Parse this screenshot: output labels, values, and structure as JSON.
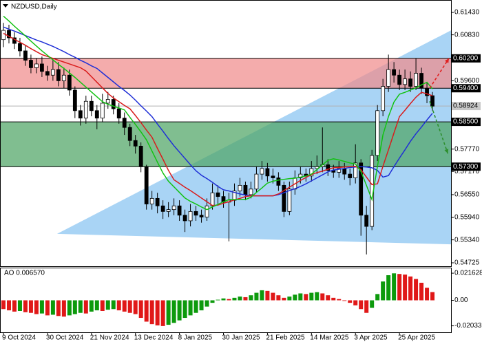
{
  "chart_data": [
    {
      "type": "candlestick",
      "title": "NZDUSD,Daily",
      "xlim": [
        -0.5,
        81.375
      ],
      "ylim": [
        0.54633,
        0.61744
      ],
      "color": "#000000",
      "open": [
        0.607,
        0.6095,
        0.6075,
        0.606,
        0.604,
        0.6015,
        0.5995,
        0.6005,
        0.5985,
        0.5975,
        0.599,
        0.596,
        0.5975,
        0.5935,
        0.588,
        0.586,
        0.5905,
        0.588,
        0.586,
        0.59,
        0.591,
        0.5885,
        0.586,
        0.5835,
        0.58,
        0.5785,
        0.573,
        0.563,
        0.5645,
        0.5625,
        0.561,
        0.5615,
        0.5625,
        0.56,
        0.5585,
        0.561,
        0.56,
        0.5595,
        0.5625,
        0.566,
        0.565,
        0.5635,
        0.564,
        0.5665,
        0.568,
        0.5655,
        0.567,
        0.571,
        0.5725,
        0.5705,
        0.57,
        0.568,
        0.561,
        0.567,
        0.57,
        0.571,
        0.5705,
        0.5725,
        0.573,
        0.5735,
        0.572,
        0.5715,
        0.5725,
        0.571,
        0.57,
        0.574,
        0.56,
        0.557,
        0.576,
        0.588,
        0.5945,
        0.599,
        0.5975,
        0.595,
        0.5965,
        0.5945,
        0.598,
        0.594,
        0.592
      ],
      "high": [
        0.6115,
        0.611,
        0.609,
        0.6075,
        0.6055,
        0.603,
        0.602,
        0.6025,
        0.6,
        0.602,
        0.601,
        0.5995,
        0.599,
        0.5945,
        0.5895,
        0.592,
        0.592,
        0.5895,
        0.5925,
        0.593,
        0.592,
        0.59,
        0.5875,
        0.5845,
        0.5815,
        0.5795,
        0.5735,
        0.5665,
        0.566,
        0.564,
        0.5635,
        0.5645,
        0.564,
        0.5615,
        0.563,
        0.5625,
        0.5615,
        0.5645,
        0.5685,
        0.568,
        0.5665,
        0.566,
        0.5685,
        0.57,
        0.569,
        0.569,
        0.573,
        0.5745,
        0.574,
        0.5725,
        0.5715,
        0.569,
        0.569,
        0.572,
        0.573,
        0.5725,
        0.5745,
        0.576,
        0.5835,
        0.575,
        0.5735,
        0.5745,
        0.574,
        0.5725,
        0.579,
        0.575,
        0.5625,
        0.5775,
        0.5895,
        0.5965,
        0.603,
        0.601,
        0.599,
        0.599,
        0.5985,
        0.602,
        0.5995,
        0.5955,
        0.593
      ],
      "low": [
        0.605,
        0.606,
        0.6045,
        0.6025,
        0.6,
        0.598,
        0.598,
        0.597,
        0.596,
        0.596,
        0.5945,
        0.594,
        0.592,
        0.586,
        0.584,
        0.5845,
        0.5865,
        0.583,
        0.585,
        0.5885,
        0.587,
        0.5845,
        0.5815,
        0.5785,
        0.5765,
        0.5715,
        0.5615,
        0.5615,
        0.5605,
        0.559,
        0.5595,
        0.56,
        0.5585,
        0.5555,
        0.557,
        0.5585,
        0.558,
        0.5585,
        0.5615,
        0.563,
        0.562,
        0.553,
        0.5625,
        0.565,
        0.564,
        0.5645,
        0.566,
        0.5695,
        0.569,
        0.5685,
        0.5665,
        0.5595,
        0.56,
        0.5655,
        0.5685,
        0.569,
        0.569,
        0.571,
        0.5715,
        0.5705,
        0.57,
        0.57,
        0.5695,
        0.568,
        0.5685,
        0.5545,
        0.5495,
        0.556,
        0.5745,
        0.5865,
        0.593,
        0.5955,
        0.5935,
        0.5935,
        0.593,
        0.5935,
        0.5925,
        0.59,
        0.588
      ],
      "close": [
        0.6095,
        0.6075,
        0.606,
        0.604,
        0.6015,
        0.5995,
        0.6005,
        0.5985,
        0.5975,
        0.599,
        0.596,
        0.5975,
        0.5935,
        0.588,
        0.586,
        0.5905,
        0.588,
        0.586,
        0.59,
        0.591,
        0.5885,
        0.586,
        0.5835,
        0.58,
        0.5785,
        0.573,
        0.563,
        0.5645,
        0.5625,
        0.561,
        0.5615,
        0.5625,
        0.56,
        0.5585,
        0.561,
        0.56,
        0.5595,
        0.5625,
        0.566,
        0.565,
        0.5635,
        0.564,
        0.5665,
        0.568,
        0.5655,
        0.567,
        0.571,
        0.5725,
        0.5705,
        0.57,
        0.568,
        0.561,
        0.567,
        0.57,
        0.571,
        0.5705,
        0.5725,
        0.573,
        0.5735,
        0.572,
        0.5715,
        0.5725,
        0.571,
        0.57,
        0.574,
        0.56,
        0.557,
        0.576,
        0.588,
        0.5945,
        0.599,
        0.5975,
        0.595,
        0.5965,
        0.5945,
        0.598,
        0.594,
        0.592,
        0.5892
      ],
      "lines": [
        {
          "color": "#1f2fd6",
          "values": [
            0.6104,
            0.6098,
            0.6093,
            0.6087,
            0.6081,
            0.6075,
            0.6069,
            0.6064,
            0.6058,
            0.6052,
            0.6045,
            0.6038,
            0.603,
            0.6023,
            0.6015,
            0.6008,
            0.6,
            0.5993,
            0.5981,
            0.5969,
            0.5957,
            0.5945,
            0.5934,
            0.5922,
            0.5908,
            0.5893,
            0.5879,
            0.5864,
            0.5844,
            0.5825,
            0.5805,
            0.5786,
            0.5769,
            0.5752,
            0.5735,
            0.5719,
            0.5707,
            0.5698,
            0.5688,
            0.5677,
            0.5668,
            0.5665,
            0.5661,
            0.5657,
            0.5654,
            0.5652,
            0.5652,
            0.5652,
            0.5652,
            0.5652,
            0.5655,
            0.566,
            0.5666,
            0.5671,
            0.5677,
            0.5684,
            0.5692,
            0.57,
            0.5708,
            0.5716,
            0.5721,
            0.5723,
            0.5725,
            0.5728,
            0.5729,
            0.573,
            0.5729,
            0.5727,
            0.572,
            0.5702,
            0.5706,
            0.573,
            0.5753,
            0.5775,
            0.5798,
            0.5818,
            0.5836,
            0.5855,
            0.5873
          ]
        },
        {
          "color": "#d91c1c",
          "values": [
            0.6087,
            0.6079,
            0.6071,
            0.6063,
            0.6055,
            0.6046,
            0.6038,
            0.603,
            0.6025,
            0.602,
            0.6015,
            0.601,
            0.6005,
            0.6,
            0.5995,
            0.5986,
            0.5971,
            0.5956,
            0.5941,
            0.5926,
            0.5914,
            0.5904,
            0.5894,
            0.5885,
            0.5867,
            0.5848,
            0.5828,
            0.5809,
            0.5779,
            0.575,
            0.572,
            0.5695,
            0.5685,
            0.5675,
            0.5666,
            0.5656,
            0.5646,
            0.5636,
            0.5626,
            0.5627,
            0.5632,
            0.5636,
            0.5641,
            0.5645,
            0.565,
            0.5652,
            0.5652,
            0.5652,
            0.5652,
            0.5652,
            0.5657,
            0.5666,
            0.5675,
            0.5684,
            0.5693,
            0.5701,
            0.5709,
            0.5714,
            0.5718,
            0.5723,
            0.5727,
            0.5728,
            0.5729,
            0.573,
            0.5731,
            0.5722,
            0.5702,
            0.5682,
            0.5684,
            0.5731,
            0.5775,
            0.582,
            0.5864,
            0.5881,
            0.5899,
            0.5916,
            0.5929,
            0.5925,
            0.592
          ]
        },
        {
          "color": "#12c212",
          "values": [
            0.6133,
            0.612,
            0.6106,
            0.6093,
            0.608,
            0.6066,
            0.6053,
            0.604,
            0.6028,
            0.6016,
            0.6004,
            0.5993,
            0.5981,
            0.5969,
            0.5956,
            0.5943,
            0.593,
            0.5917,
            0.5904,
            0.5897,
            0.5892,
            0.5887,
            0.5882,
            0.5862,
            0.5843,
            0.5823,
            0.5802,
            0.5772,
            0.5742,
            0.5713,
            0.5691,
            0.5676,
            0.5661,
            0.5646,
            0.5637,
            0.563,
            0.5622,
            0.5615,
            0.5622,
            0.5629,
            0.5636,
            0.5642,
            0.5642,
            0.5642,
            0.5642,
            0.5648,
            0.5661,
            0.5673,
            0.5686,
            0.5691,
            0.5694,
            0.5696,
            0.5698,
            0.5699,
            0.5702,
            0.5705,
            0.571,
            0.5722,
            0.5735,
            0.5747,
            0.5751,
            0.5748,
            0.5744,
            0.574,
            0.5737,
            0.5717,
            0.568,
            0.5642,
            0.5731,
            0.5815,
            0.5864,
            0.5903,
            0.5924,
            0.5929,
            0.5935,
            0.5941,
            0.5949,
            0.5956,
            0.5938
          ]
        }
      ],
      "zones": [
        {
          "from": 0.602,
          "to": 0.594,
          "color": "#f08c8c"
        },
        {
          "from": 0.585,
          "to": 0.573,
          "color": "#4fa565"
        }
      ],
      "triangle": {
        "color": "#a9d4f5",
        "points": [
          [
            9.75,
            0.555
          ],
          [
            81.375,
            0.6095
          ],
          [
            81.375,
            0.5522
          ]
        ]
      },
      "arrows": [
        {
          "color": "#e02020",
          "from": [
            77.5,
            0.594
          ],
          "to": [
            81,
            0.602
          ]
        },
        {
          "color": "#2e8f2e",
          "from": [
            77.5,
            0.5905
          ],
          "to": [
            80.8,
            0.5765
          ]
        }
      ],
      "levels": [
        {
          "value": 0.602,
          "label": "0.60200"
        },
        {
          "value": 0.594,
          "label": "0.59400"
        },
        {
          "value": 0.585,
          "label": "0.58500"
        },
        {
          "value": 0.573,
          "label": "0.57300"
        }
      ],
      "current": {
        "value": 0.58924,
        "label": "0.58924"
      },
      "yticks": [
        {
          "value": 0.6143,
          "label": "0.61430"
        },
        {
          "value": 0.6083,
          "label": "0.60830"
        },
        {
          "value": 0.596,
          "label": "0.59600"
        },
        {
          "value": 0.5777,
          "label": "0.57770"
        },
        {
          "value": 0.5717,
          "label": "0.57170"
        },
        {
          "value": 0.5655,
          "label": "0.56550"
        },
        {
          "value": 0.5594,
          "label": "0.55940"
        },
        {
          "value": 0.5534,
          "label": "0.55340"
        },
        {
          "value": 0.54725,
          "label": "0.54725"
        }
      ]
    },
    {
      "type": "oscillator",
      "label": "AO 0.006570",
      "up_color": "#0c9a0c",
      "down_color": "#e01818",
      "xlim": [
        -0.5,
        81.375
      ],
      "ylim": [
        -0.0255,
        0.0255
      ],
      "values": [
        -0.007,
        -0.008,
        -0.009,
        -0.0085,
        -0.0095,
        -0.01,
        -0.011,
        -0.0105,
        -0.012,
        -0.0115,
        -0.0125,
        -0.013,
        -0.012,
        -0.011,
        -0.01,
        -0.0105,
        -0.009,
        -0.008,
        -0.0085,
        -0.0075,
        -0.007,
        -0.008,
        -0.009,
        -0.01,
        -0.011,
        -0.014,
        -0.017,
        -0.019,
        -0.02,
        -0.0205,
        -0.0195,
        -0.018,
        -0.016,
        -0.014,
        -0.012,
        -0.01,
        -0.008,
        -0.005,
        -0.002,
        0.0005,
        0.0015,
        0.001,
        0.002,
        0.003,
        0.0025,
        0.004,
        0.006,
        0.008,
        0.0075,
        0.006,
        0.004,
        0.002,
        0.003,
        0.0045,
        0.0055,
        0.005,
        0.006,
        0.0065,
        0.0055,
        0.004,
        0.002,
        0.001,
        -0.0005,
        -0.002,
        -0.004,
        -0.007,
        -0.01,
        -0.006,
        0.005,
        0.015,
        0.02,
        0.0215,
        0.021,
        0.0205,
        0.019,
        0.017,
        0.014,
        0.01,
        0.00657
      ],
      "yticks": [
        {
          "value": 0.021628,
          "label": "0.021628"
        },
        {
          "value": 0,
          "label": "0.00"
        },
        {
          "value": -0.020338,
          "label": "-0.020338"
        }
      ],
      "xticks": [
        {
          "value": 0,
          "label": "9 Oct 2024"
        },
        {
          "value": 8,
          "label": "30 Oct 2024"
        },
        {
          "value": 16,
          "label": "21 Nov 2024"
        },
        {
          "value": 24,
          "label": "13 Dec 2024"
        },
        {
          "value": 32,
          "label": "8 Jan 2025"
        },
        {
          "value": 40,
          "label": "30 Jan 2025"
        },
        {
          "value": 48,
          "label": "21 Feb 2025"
        },
        {
          "value": 56,
          "label": "14 Mar 2025"
        },
        {
          "value": 64,
          "label": "3 Apr 2025"
        },
        {
          "value": 72,
          "label": "25 Apr 2025"
        }
      ]
    }
  ]
}
